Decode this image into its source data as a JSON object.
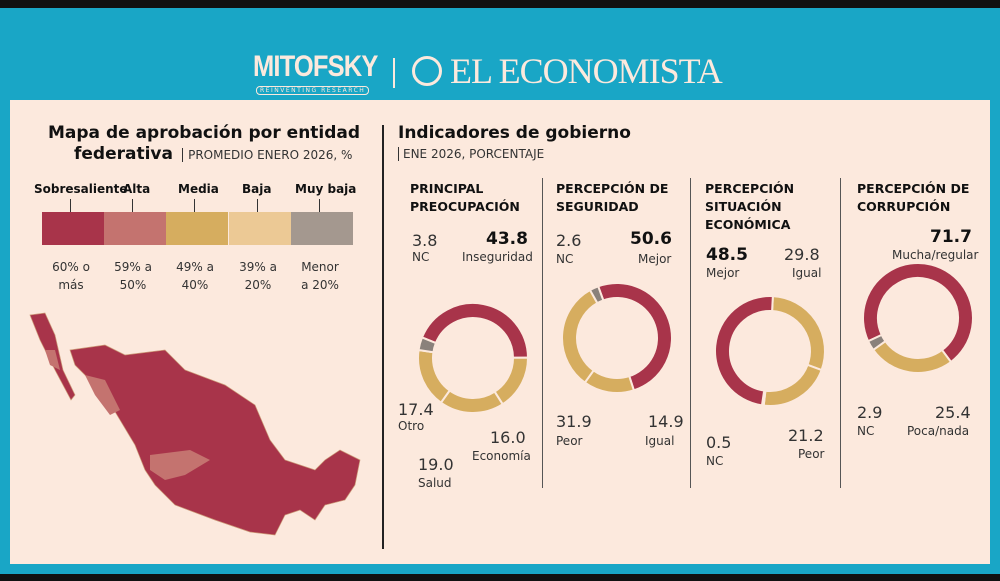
{
  "header": {
    "logo_left": "MITOFSKY",
    "logo_left_tagline": "REINVENTING RESEARCH",
    "logo_right": "EL ECONOMISTA"
  },
  "map": {
    "title_line1": "Mapa de aprobación por entidad",
    "title_line2": "federativa",
    "subtitle": "PROMEDIO ENERO 2026, %",
    "legend": [
      {
        "label": "Sobresaliente",
        "range": [
          "60% o",
          "más"
        ],
        "color": "#a8344a"
      },
      {
        "label": "Alta",
        "range": [
          "59% a",
          "50%"
        ],
        "color": "#c4736f"
      },
      {
        "label": "Media",
        "range": [
          "49% a",
          "40%"
        ],
        "color": "#d6ad5f"
      },
      {
        "label": "Baja",
        "range": [
          "39% a",
          "20%"
        ],
        "color": "#ecc995"
      },
      {
        "label": "Muy baja",
        "range": [
          "Menor",
          "a 20%"
        ],
        "color": "#a4988f"
      }
    ]
  },
  "indicators": {
    "title": "Indicadores de gobierno",
    "subtitle": "ENE 2026, PORCENTAJE"
  },
  "chart_data": [
    {
      "type": "pie",
      "title": "PRINCIPAL PREOCUPACIÓN",
      "categories": [
        "Inseguridad",
        "Economía",
        "Salud",
        "Otro",
        "NC"
      ],
      "values": [
        43.8,
        16.0,
        19.0,
        17.4,
        3.8
      ],
      "colors": [
        "#a8344a",
        "#d6ad5f",
        "#d6ad5f",
        "#d6ad5f",
        "#8a817b"
      ]
    },
    {
      "type": "pie",
      "title": "PERCEPCIÓN DE SEGURIDAD",
      "categories": [
        "Mejor",
        "Igual",
        "Peor",
        "NC"
      ],
      "values": [
        50.6,
        14.9,
        31.9,
        2.6
      ],
      "colors": [
        "#a8344a",
        "#d6ad5f",
        "#d6ad5f",
        "#8a817b"
      ]
    },
    {
      "type": "pie",
      "title": "PERCEPCIÓN SITUACIÓN ECONÓMICA",
      "categories": [
        "Igual",
        "Peor",
        "NC",
        "Mejor"
      ],
      "values": [
        29.8,
        21.2,
        0.5,
        48.5
      ],
      "colors": [
        "#d6ad5f",
        "#d6ad5f",
        "#8a817b",
        "#a8344a"
      ]
    },
    {
      "type": "pie",
      "title": "PERCEPCIÓN DE CORRUPCIÓN",
      "categories": [
        "Mucha/regular",
        "Poca/nada",
        "NC"
      ],
      "values": [
        71.7,
        25.4,
        2.9
      ],
      "colors": [
        "#a8344a",
        "#d6ad5f",
        "#8a817b"
      ]
    }
  ]
}
